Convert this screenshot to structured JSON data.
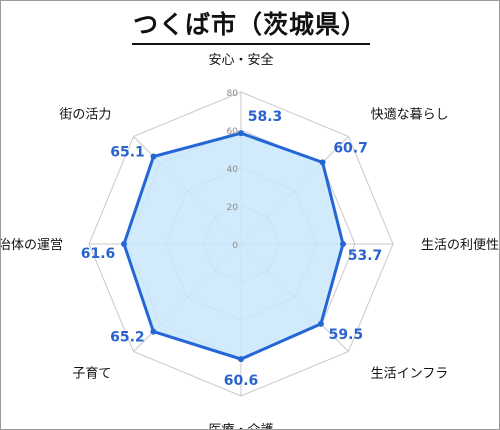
{
  "title": "つくば市（茨城県）",
  "chart_data": {
    "type": "radar",
    "title": "つくば市（茨城県）",
    "categories": [
      "安心・安全",
      "快適な暮らし",
      "生活の利便性",
      "生活インフラ",
      "医療・介護",
      "子育て",
      "自治体の運営",
      "街の活力"
    ],
    "values": [
      58.3,
      60.7,
      53.7,
      59.5,
      60.6,
      65.2,
      61.6,
      65.1
    ],
    "value_labels": [
      "58.3",
      "60.7",
      "53.7",
      "59.5",
      "60.6",
      "65.2",
      "61.6",
      "65.1"
    ],
    "rlim": [
      0,
      80
    ],
    "ticks": [
      0,
      20,
      40,
      60,
      80
    ],
    "tick_labels": [
      "0",
      "20",
      "40",
      "60",
      "80"
    ],
    "grid": true,
    "colors": {
      "line": "#2466d6",
      "fill": "#c9e6fb",
      "grid": "#c9c9c9",
      "value_text": "#2a63cf"
    }
  }
}
